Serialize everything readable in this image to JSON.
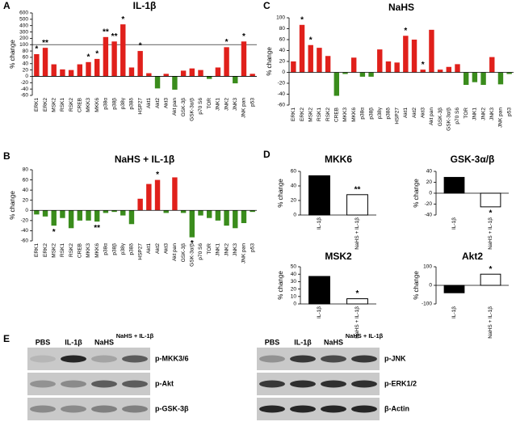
{
  "chart_data": [
    {
      "type": "bar",
      "panel": "A",
      "title": "IL-1β",
      "ylabel": "% change",
      "categories": [
        "ERK1",
        "ERK2",
        "MSK2",
        "RSK1",
        "RSK2",
        "CREB",
        "MKK3",
        "MKK6",
        "p38α",
        "p38β",
        "p38γ",
        "p38δ",
        "HSP27",
        "Akt1",
        "Akt2",
        "Akt3",
        "Akt pan",
        "GSK-3β",
        "GSK-3α/β",
        "p70 S6",
        "TOR",
        "JNK1",
        "JNK2",
        "JNK3",
        "JNK pan",
        "p53"
      ],
      "values": [
        70,
        90,
        38,
        22,
        20,
        38,
        45,
        55,
        220,
        150,
        420,
        28,
        80,
        10,
        -38,
        8,
        -42,
        18,
        25,
        20,
        -8,
        28,
        92,
        -22,
        150,
        8
      ],
      "significance": [
        "*",
        "**",
        null,
        null,
        null,
        null,
        "*",
        "*",
        "**",
        "**",
        "*",
        null,
        "*",
        null,
        null,
        null,
        null,
        null,
        null,
        null,
        null,
        null,
        "*",
        null,
        "*",
        null
      ],
      "ylim": [
        -60,
        600
      ],
      "yticks": [
        -60,
        -40,
        -20,
        0,
        20,
        40,
        60,
        80,
        100,
        200,
        300,
        400,
        500,
        600
      ],
      "reference_line": 100,
      "positive_color": "#e0201b",
      "negative_color": "#3a8c1c"
    },
    {
      "type": "bar",
      "panel": "B",
      "title": "NaHS + IL-1β",
      "ylabel": "% change",
      "categories": [
        "ERK1",
        "ERK2",
        "MSK2",
        "RSK1",
        "RSK2",
        "CREB",
        "MKK3",
        "MKK6",
        "p38α",
        "p38β",
        "p38γ",
        "p38δ",
        "HSP27",
        "Akt1",
        "Akt2",
        "Akt3",
        "Akt pan",
        "GSK-3β",
        "GSK-3α/β",
        "p70 S6",
        "TOR",
        "JNK1",
        "JNK2",
        "JNK3",
        "JNK pan",
        "p53"
      ],
      "values": [
        -8,
        -12,
        -30,
        -15,
        -35,
        -20,
        -20,
        -22,
        -5,
        -3,
        -10,
        -27,
        23,
        52,
        60,
        -5,
        65,
        -5,
        -53,
        -10,
        -15,
        -20,
        -30,
        -35,
        -25,
        -3
      ],
      "significance": [
        null,
        null,
        "*",
        null,
        null,
        null,
        null,
        "**",
        null,
        null,
        null,
        null,
        null,
        null,
        "*",
        null,
        null,
        null,
        "*",
        null,
        null,
        null,
        null,
        null,
        null,
        null
      ],
      "ylim": [
        -60,
        80
      ],
      "yticks": [
        -60,
        -40,
        -20,
        0,
        20,
        40,
        60,
        80
      ],
      "positive_color": "#e0201b",
      "negative_color": "#3a8c1c"
    },
    {
      "type": "bar",
      "panel": "C",
      "title": "NaHS",
      "ylabel": "% change",
      "categories": [
        "ERK1",
        "ERK2",
        "MSK2",
        "RSK1",
        "RSK2",
        "CREB",
        "MKK3",
        "MKK6",
        "p38α",
        "p38β",
        "p38γ",
        "p38δ",
        "HSP27",
        "Akt1",
        "Akt2",
        "Akt3",
        "Akt pan",
        "GSK-3β",
        "GSK-3α/β",
        "p70 S6",
        "TOR",
        "JNK1",
        "JNK2",
        "JNK3",
        "JNK pan",
        "p53"
      ],
      "values": [
        20,
        87,
        50,
        45,
        30,
        -43,
        -3,
        27,
        -8,
        -8,
        42,
        20,
        18,
        67,
        60,
        5,
        78,
        5,
        10,
        15,
        -23,
        -18,
        -23,
        28,
        -22,
        -3
      ],
      "significance": [
        null,
        "*",
        "*",
        null,
        null,
        null,
        null,
        null,
        null,
        null,
        null,
        null,
        null,
        "*",
        null,
        "*",
        null,
        null,
        null,
        null,
        null,
        null,
        null,
        null,
        null,
        null
      ],
      "ylim": [
        -60,
        100
      ],
      "yticks": [
        -60,
        -40,
        -20,
        0,
        20,
        40,
        60,
        80,
        100
      ],
      "positive_color": "#e0201b",
      "negative_color": "#3a8c1c"
    },
    {
      "type": "bar",
      "panel": "D",
      "title": "MKK6",
      "ylabel": "% change",
      "categories": [
        "IL-1β",
        "NaHS + IL-1β"
      ],
      "values": [
        54,
        28
      ],
      "significance": [
        null,
        "**"
      ],
      "colors": [
        "#000000",
        "#ffffff"
      ],
      "ylim": [
        0,
        60
      ],
      "yticks": [
        0,
        20,
        40,
        60
      ]
    },
    {
      "type": "bar",
      "title": "GSK-3α/β",
      "ylabel": "% change",
      "categories": [
        "IL-1β",
        "NaHS + IL-1β"
      ],
      "values": [
        29,
        -25
      ],
      "significance": [
        null,
        "*"
      ],
      "colors": [
        "#000000",
        "#ffffff"
      ],
      "ylim": [
        -40,
        40
      ],
      "yticks": [
        -40,
        -20,
        0,
        20,
        40
      ]
    },
    {
      "type": "bar",
      "title": "MSK2",
      "ylabel": "% change",
      "categories": [
        "IL-1β",
        "NaHS + IL-1β"
      ],
      "values": [
        37,
        7
      ],
      "significance": [
        null,
        "*"
      ],
      "colors": [
        "#000000",
        "#ffffff"
      ],
      "ylim": [
        0,
        50
      ],
      "yticks": [
        0,
        10,
        20,
        30,
        40,
        50
      ]
    },
    {
      "type": "bar",
      "title": "Akt2",
      "ylabel": "% change",
      "categories": [
        "IL-1β",
        "NaHS + IL-1β"
      ],
      "values": [
        -40,
        60
      ],
      "significance": [
        null,
        "*"
      ],
      "colors": [
        "#000000",
        "#ffffff"
      ],
      "ylim": [
        -100,
        100
      ],
      "yticks": [
        -100,
        0,
        100
      ]
    }
  ],
  "blots": {
    "panel": "E",
    "lanes": [
      "PBS",
      "IL-1β",
      "NaHS",
      "NaHS + IL-1β"
    ],
    "left_proteins": [
      "p-MKK3/6",
      "p-Akt",
      "p-GSK-3β"
    ],
    "right_proteins": [
      "p-JNK",
      "p-ERK1/2",
      "β-Actin"
    ]
  }
}
